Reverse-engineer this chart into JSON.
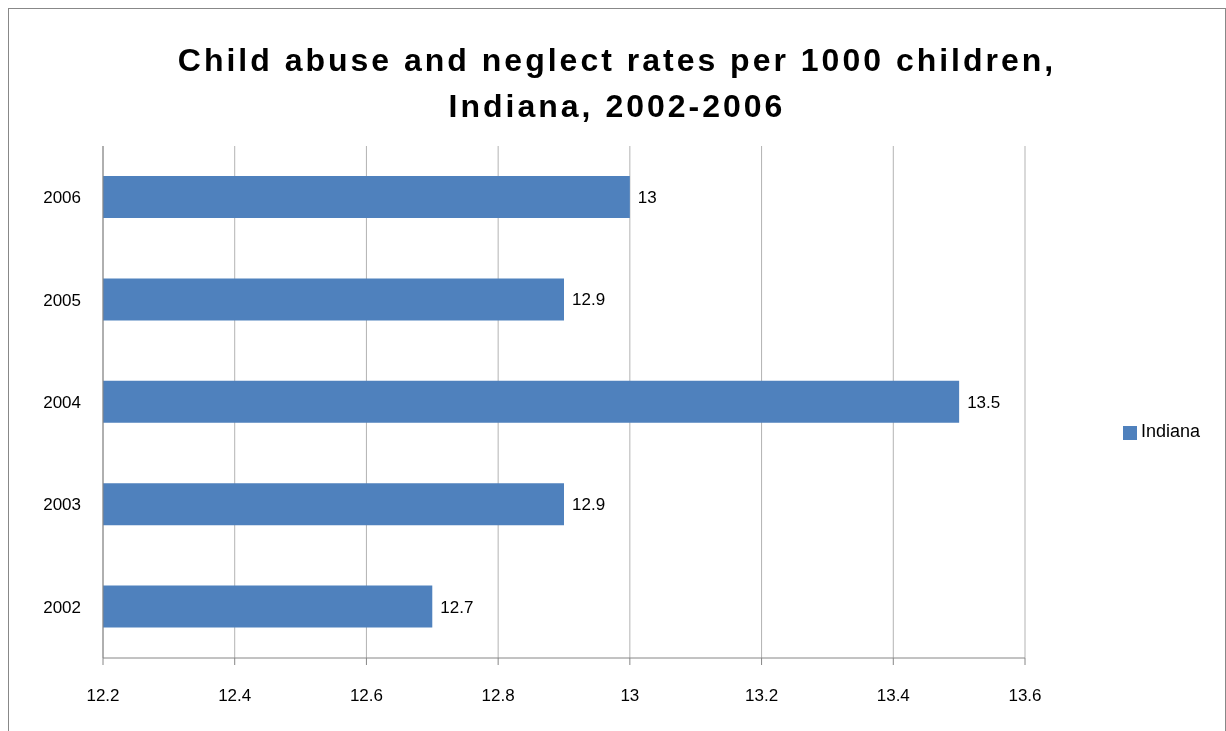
{
  "chart_data": {
    "type": "bar",
    "title": "Child abuse and neglect rates per 1000 children, Indiana, 2002-2006",
    "orientation": "horizontal",
    "categories": [
      "2006",
      "2005",
      "2004",
      "2003",
      "2002"
    ],
    "series": [
      {
        "name": "Indiana",
        "color": "#4f81bd",
        "values": [
          13,
          12.9,
          13.5,
          12.9,
          12.7
        ]
      }
    ],
    "xlim": [
      12.2,
      13.6
    ],
    "xticks": [
      12.2,
      12.4,
      12.6,
      12.8,
      13,
      13.2,
      13.4,
      13.6
    ],
    "grid": "x",
    "legend": "right",
    "data_labels": true
  }
}
